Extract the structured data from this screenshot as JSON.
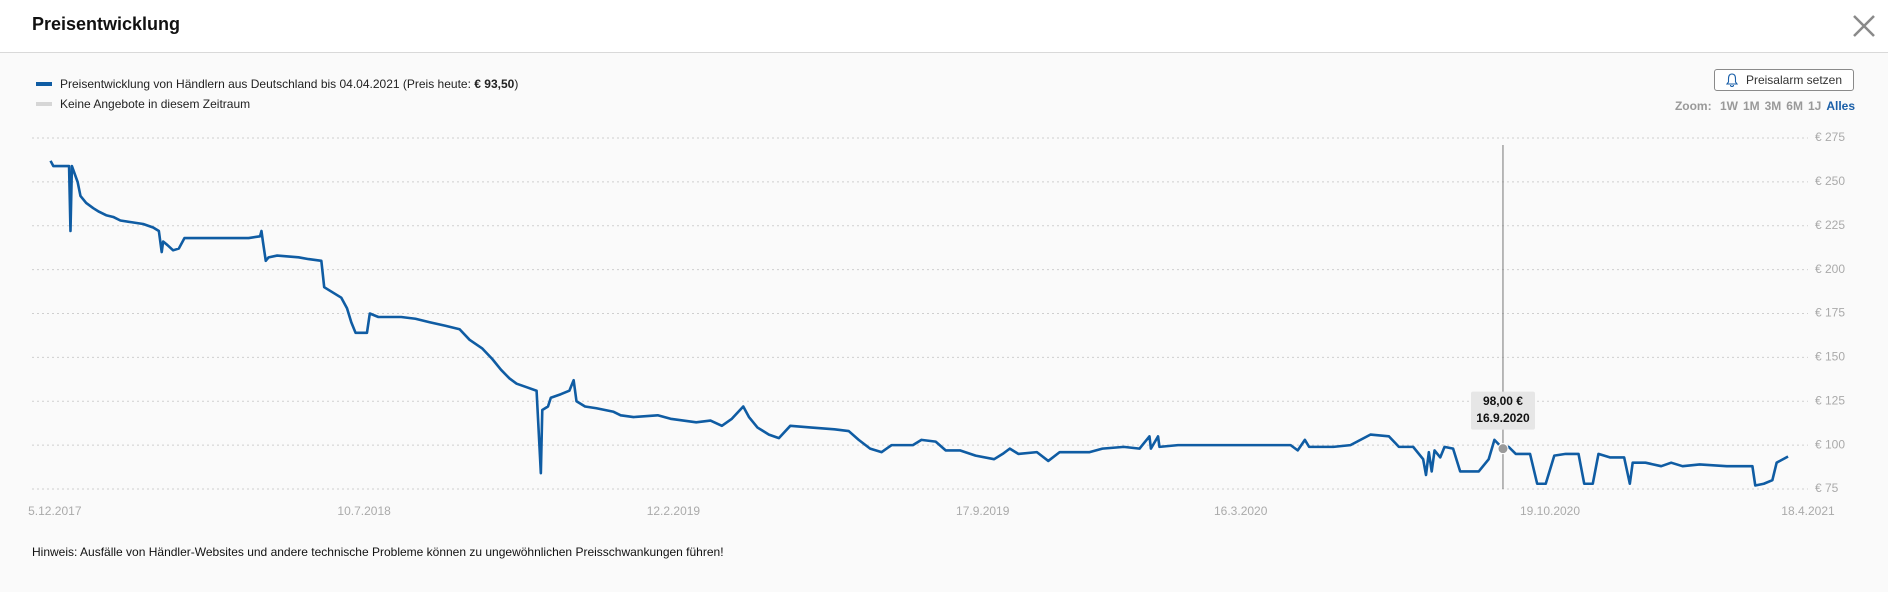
{
  "header": {
    "title": "Preisentwicklung"
  },
  "alarm_button": "Preisalarm setzen",
  "zoom": {
    "label": "Zoom:",
    "options": [
      "1W",
      "1M",
      "3M",
      "6M",
      "1J",
      "Alles"
    ],
    "active_option": 5
  },
  "note": "Hinweis: Ausfälle von Händler-Websites und andere technische Probleme können zu ungewöhnlichen Preisschwankungen führen!",
  "chart_data": {
    "type": "line",
    "legend_price_prefix": "(Preis heute:",
    "legend_price": "€ 93,50",
    "legend_price_suffix": ")",
    "no_offers_legend": {
      "name": "Keine Angebote in diesem Zeitraum",
      "color": "#d6d6d6"
    },
    "x": [
      "2017-12-02",
      "2017-12-04",
      "2017-12-15",
      "2017-12-16",
      "2017-12-17",
      "2017-12-21",
      "2017-12-23",
      "2017-12-27",
      "2018-01-01",
      "2018-01-05",
      "2018-01-10",
      "2018-01-15",
      "2018-01-20",
      "2018-01-28",
      "2018-02-05",
      "2018-02-12",
      "2018-02-16",
      "2018-02-18",
      "2018-02-19",
      "2018-02-22",
      "2018-02-26",
      "2018-03-02",
      "2018-03-06",
      "2018-03-15",
      "2018-04-01",
      "2018-04-20",
      "2018-04-28",
      "2018-04-29",
      "2018-04-30",
      "2018-05-02",
      "2018-05-04",
      "2018-05-10",
      "2018-05-25",
      "2018-06-01",
      "2018-06-10",
      "2018-06-12",
      "2018-06-18",
      "2018-06-24",
      "2018-06-28",
      "2018-07-01",
      "2018-07-04",
      "2018-07-12",
      "2018-07-14",
      "2018-07-20",
      "2018-08-05",
      "2018-08-15",
      "2018-08-25",
      "2018-09-05",
      "2018-09-15",
      "2018-09-22",
      "2018-10-01",
      "2018-10-08",
      "2018-10-14",
      "2018-10-20",
      "2018-10-25",
      "2018-11-01",
      "2018-11-08",
      "2018-11-11",
      "2018-11-12",
      "2018-11-16",
      "2018-11-18",
      "2018-11-25",
      "2018-12-01",
      "2018-12-04",
      "2018-12-06",
      "2018-12-12",
      "2018-12-20",
      "2019-01-01",
      "2019-01-06",
      "2019-01-15",
      "2019-02-01",
      "2019-02-10",
      "2019-02-28",
      "2019-03-10",
      "2019-03-18",
      "2019-03-25",
      "2019-04-02",
      "2019-04-06",
      "2019-04-12",
      "2019-04-20",
      "2019-04-27",
      "2019-05-05",
      "2019-05-20",
      "2019-06-05",
      "2019-06-15",
      "2019-06-22",
      "2019-06-30",
      "2019-07-08",
      "2019-07-15",
      "2019-07-30",
      "2019-08-05",
      "2019-08-15",
      "2019-08-22",
      "2019-09-01",
      "2019-09-12",
      "2019-09-25",
      "2019-10-01",
      "2019-10-06",
      "2019-10-12",
      "2019-10-25",
      "2019-11-02",
      "2019-11-10",
      "2019-12-01",
      "2019-12-10",
      "2019-12-25",
      "2020-01-05",
      "2020-01-12",
      "2020-01-13",
      "2020-01-18",
      "2020-01-19",
      "2020-02-01",
      "2020-03-01",
      "2020-04-01",
      "2020-04-20",
      "2020-04-25",
      "2020-04-30",
      "2020-05-03",
      "2020-05-20",
      "2020-06-01",
      "2020-06-15",
      "2020-06-28",
      "2020-07-05",
      "2020-07-15",
      "2020-07-22",
      "2020-07-24",
      "2020-07-26",
      "2020-07-28",
      "2020-07-30",
      "2020-08-03",
      "2020-08-06",
      "2020-08-12",
      "2020-08-17",
      "2020-08-30",
      "2020-09-06",
      "2020-09-10",
      "2020-09-16",
      "2020-09-20",
      "2020-09-25",
      "2020-10-05",
      "2020-10-10",
      "2020-10-16",
      "2020-10-22",
      "2020-10-30",
      "2020-11-08",
      "2020-11-12",
      "2020-11-18",
      "2020-11-22",
      "2020-11-30",
      "2020-12-10",
      "2020-12-14",
      "2020-12-16",
      "2020-12-25",
      "2021-01-05",
      "2021-01-12",
      "2021-01-20",
      "2021-02-01",
      "2021-02-20",
      "2021-03-01",
      "2021-03-10",
      "2021-03-12",
      "2021-03-18",
      "2021-03-24",
      "2021-03-27",
      "2021-04-04"
    ],
    "series": [
      {
        "name": "Preisentwicklung von Händlern aus Deutschland bis 04.04.2021",
        "color": "#0f5ca3",
        "values": [
          262,
          259,
          259,
          222,
          259,
          250,
          242,
          238,
          235,
          233,
          231,
          230,
          228,
          227,
          226,
          224,
          222,
          210,
          216,
          214,
          211,
          212,
          218,
          218,
          218,
          218,
          219,
          222,
          216,
          205,
          207,
          208,
          207,
          206,
          205,
          190,
          187,
          184,
          178,
          170,
          164,
          164,
          175,
          173,
          173,
          172,
          170,
          168,
          166,
          160,
          155,
          149,
          143,
          138,
          135,
          133,
          131,
          84,
          120,
          122,
          127,
          129,
          131,
          137,
          125,
          122,
          121,
          119,
          117,
          116,
          117,
          115,
          113,
          114,
          111,
          115,
          122,
          116,
          110,
          106,
          104,
          111,
          110,
          109,
          108,
          103,
          98,
          96,
          100,
          100,
          103,
          102,
          97,
          97,
          94,
          92,
          95,
          98,
          95,
          96,
          91,
          96,
          96,
          98,
          99,
          98,
          105,
          98,
          105,
          99,
          100,
          100,
          100,
          100,
          97,
          103,
          99,
          99,
          100,
          106,
          105,
          99,
          99,
          92,
          83,
          96,
          85,
          97,
          93,
          99,
          98,
          85,
          85,
          92,
          103,
          98,
          99,
          95,
          95,
          78,
          78,
          94,
          95,
          95,
          78,
          78,
          95,
          93,
          93,
          78,
          90,
          90,
          88,
          90,
          88,
          89,
          88,
          88,
          88,
          77,
          78,
          80,
          90,
          93.5
        ]
      }
    ],
    "xlim": [
      "2017-11-19",
      "2021-04-18"
    ],
    "xticks": [
      {
        "value": "2017-12-05",
        "label": "5.12.2017"
      },
      {
        "value": "2018-07-10",
        "label": "10.7.2018"
      },
      {
        "value": "2019-02-12",
        "label": "12.2.2019"
      },
      {
        "value": "2019-09-17",
        "label": "17.9.2019"
      },
      {
        "value": "2020-03-16",
        "label": "16.3.2020"
      },
      {
        "value": "2020-10-19",
        "label": "19.10.2020"
      },
      {
        "value": "2021-04-18",
        "label": "18.4.2021"
      }
    ],
    "ylim": [
      75,
      275
    ],
    "yticks": [
      {
        "value": 75,
        "label": "€ 75"
      },
      {
        "value": 100,
        "label": "€ 100"
      },
      {
        "value": 125,
        "label": "€ 125"
      },
      {
        "value": 150,
        "label": "€ 150"
      },
      {
        "value": 175,
        "label": "€ 175"
      },
      {
        "value": 200,
        "label": "€ 200"
      },
      {
        "value": 225,
        "label": "€ 225"
      },
      {
        "value": 250,
        "label": "€ 250"
      },
      {
        "value": 275,
        "label": "€ 275"
      }
    ],
    "grid": true,
    "tooltip": {
      "x": "2020-09-16",
      "value": 98,
      "value_label": "98,00 €",
      "x_label": "16.9.2020"
    }
  }
}
